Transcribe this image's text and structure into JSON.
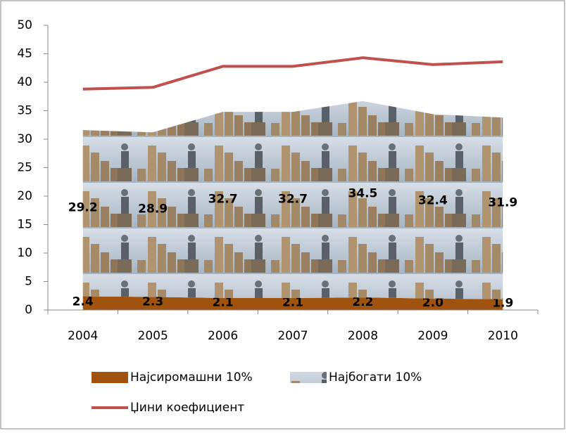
{
  "chart_data": {
    "type": "stacked-area-line",
    "categories": [
      "2004",
      "2005",
      "2006",
      "2007",
      "2008",
      "2009",
      "2010"
    ],
    "series": [
      {
        "name": "Најсиромашни 10%",
        "type": "area",
        "color": "#a0520f",
        "values": [
          2.4,
          2.3,
          2.1,
          2.1,
          2.2,
          2.0,
          1.9
        ],
        "value_labels": [
          "2.4",
          "2.3",
          "2.1",
          "2.1",
          "2.2",
          "2.0",
          "1.9"
        ]
      },
      {
        "name": "Најбогати 10%",
        "type": "area",
        "color": "#b9c5d2",
        "values": [
          29.2,
          28.9,
          32.7,
          32.7,
          34.5,
          32.4,
          31.9
        ]
      },
      {
        "name": "Џини коефициент",
        "type": "line",
        "color": "#c0504d",
        "values": [
          38.8,
          39.1,
          42.8,
          42.8,
          44.3,
          43.1,
          43.6
        ]
      }
    ],
    "ylim": [
      0,
      50
    ],
    "yticks": [
      0,
      5,
      10,
      15,
      20,
      25,
      30,
      35,
      40,
      45,
      50
    ],
    "legend": "bottom"
  }
}
